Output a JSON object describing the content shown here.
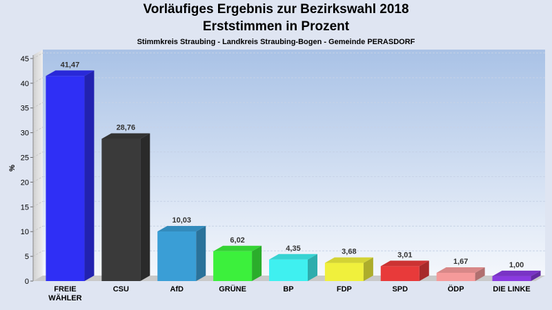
{
  "header": {
    "title_line1": "Vorläufiges Ergebnis zur Bezirkswahl 2018",
    "title_line2": "Erststimmen in Prozent",
    "subtitle": "Stimmkreis Straubing - Landkreis Straubing-Bogen - Gemeinde PERASDORF"
  },
  "chart_data": {
    "type": "bar",
    "title": "Vorläufiges Ergebnis zur Bezirkswahl 2018 - Erststimmen in Prozent",
    "subtitle": "Stimmkreis Straubing - Landkreis Straubing-Bogen - Gemeinde PERASDORF",
    "xlabel": "",
    "ylabel": "%",
    "ylim": [
      0,
      45
    ],
    "yticks": [
      0,
      5,
      10,
      15,
      20,
      25,
      30,
      35,
      40,
      45
    ],
    "grid": true,
    "categories": [
      [
        "FREIE",
        "WÄHLER"
      ],
      [
        "CSU"
      ],
      [
        "AfD"
      ],
      [
        "GRÜNE"
      ],
      [
        "BP"
      ],
      [
        "FDP"
      ],
      [
        "SPD"
      ],
      [
        "ÖDP"
      ],
      [
        "DIE LINKE"
      ]
    ],
    "values": [
      41.47,
      28.76,
      10.03,
      6.02,
      4.35,
      3.68,
      3.01,
      1.67,
      1.0
    ],
    "value_labels": [
      "41,47",
      "28,76",
      "10,03",
      "6,02",
      "4,35",
      "3,68",
      "3,01",
      "1,67",
      "1,00"
    ],
    "colors": [
      "#2f2ff5",
      "#3a3a3a",
      "#3a9ed6",
      "#3cf03c",
      "#3ff0f0",
      "#f0f03c",
      "#e83a3a",
      "#f59a9a",
      "#8a3ae0"
    ]
  }
}
